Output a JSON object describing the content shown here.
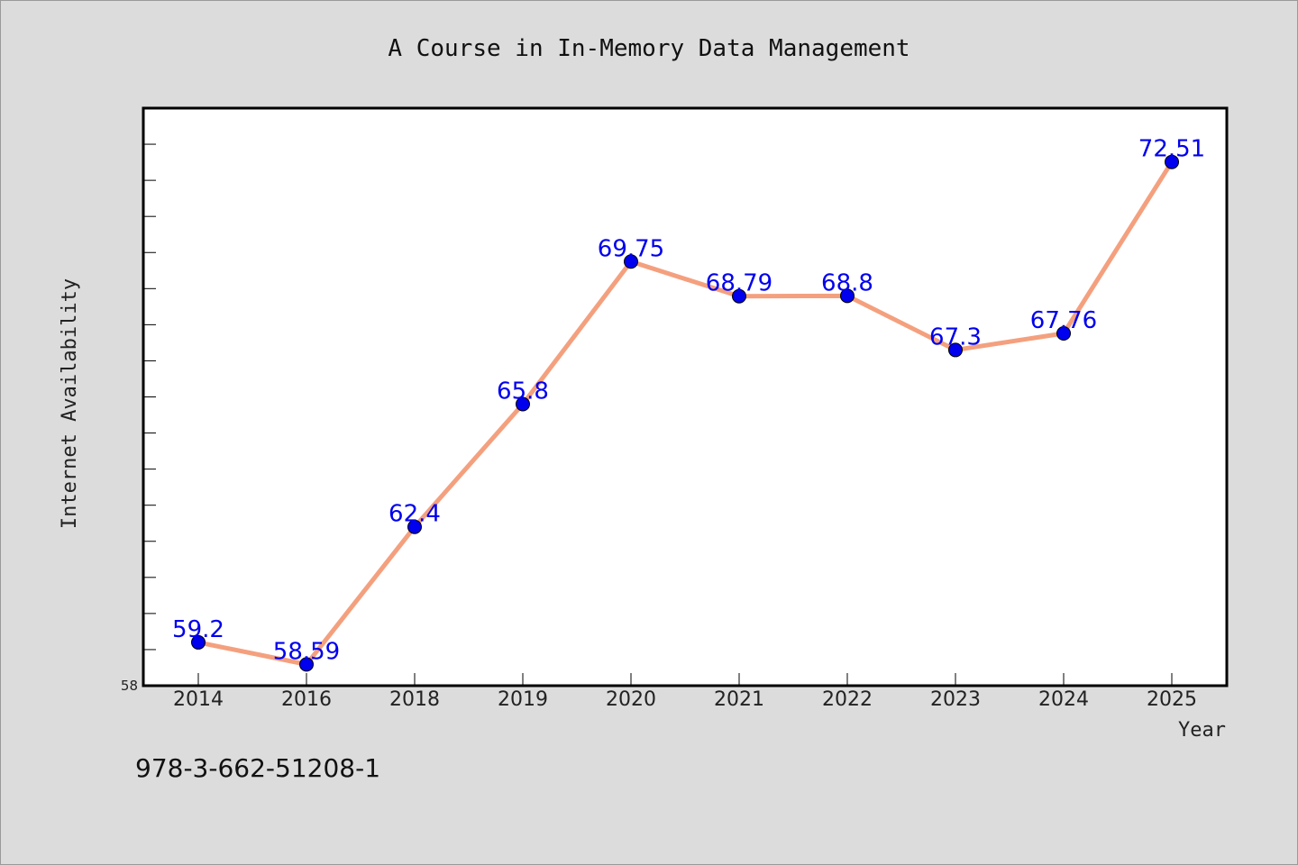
{
  "chart_data": {
    "type": "line",
    "title": "A Course in In-Memory Data Management",
    "xlabel": "Year",
    "ylabel": "Internet Availability",
    "categories": [
      "2014",
      "2016",
      "2018",
      "2019",
      "2020",
      "2021",
      "2022",
      "2023",
      "2024",
      "2025"
    ],
    "series": [
      {
        "values": [
          59.2,
          58.59,
          62.4,
          65.8,
          69.75,
          68.79,
          68.8,
          67.3,
          67.76,
          72.51
        ],
        "data_labels": [
          "59.2",
          "58.59",
          "62.4",
          "65.8",
          "69.75",
          "68.79",
          "68.8",
          "67.3",
          "67.76",
          "72.51"
        ],
        "line_color": "#f4a07e",
        "marker_color": "#0000ee"
      }
    ],
    "ylim": [
      58,
      74
    ],
    "ytick_labels": [
      "58"
    ],
    "grid": false,
    "legend": "none"
  },
  "footnote": "978-3-662-51208-1"
}
